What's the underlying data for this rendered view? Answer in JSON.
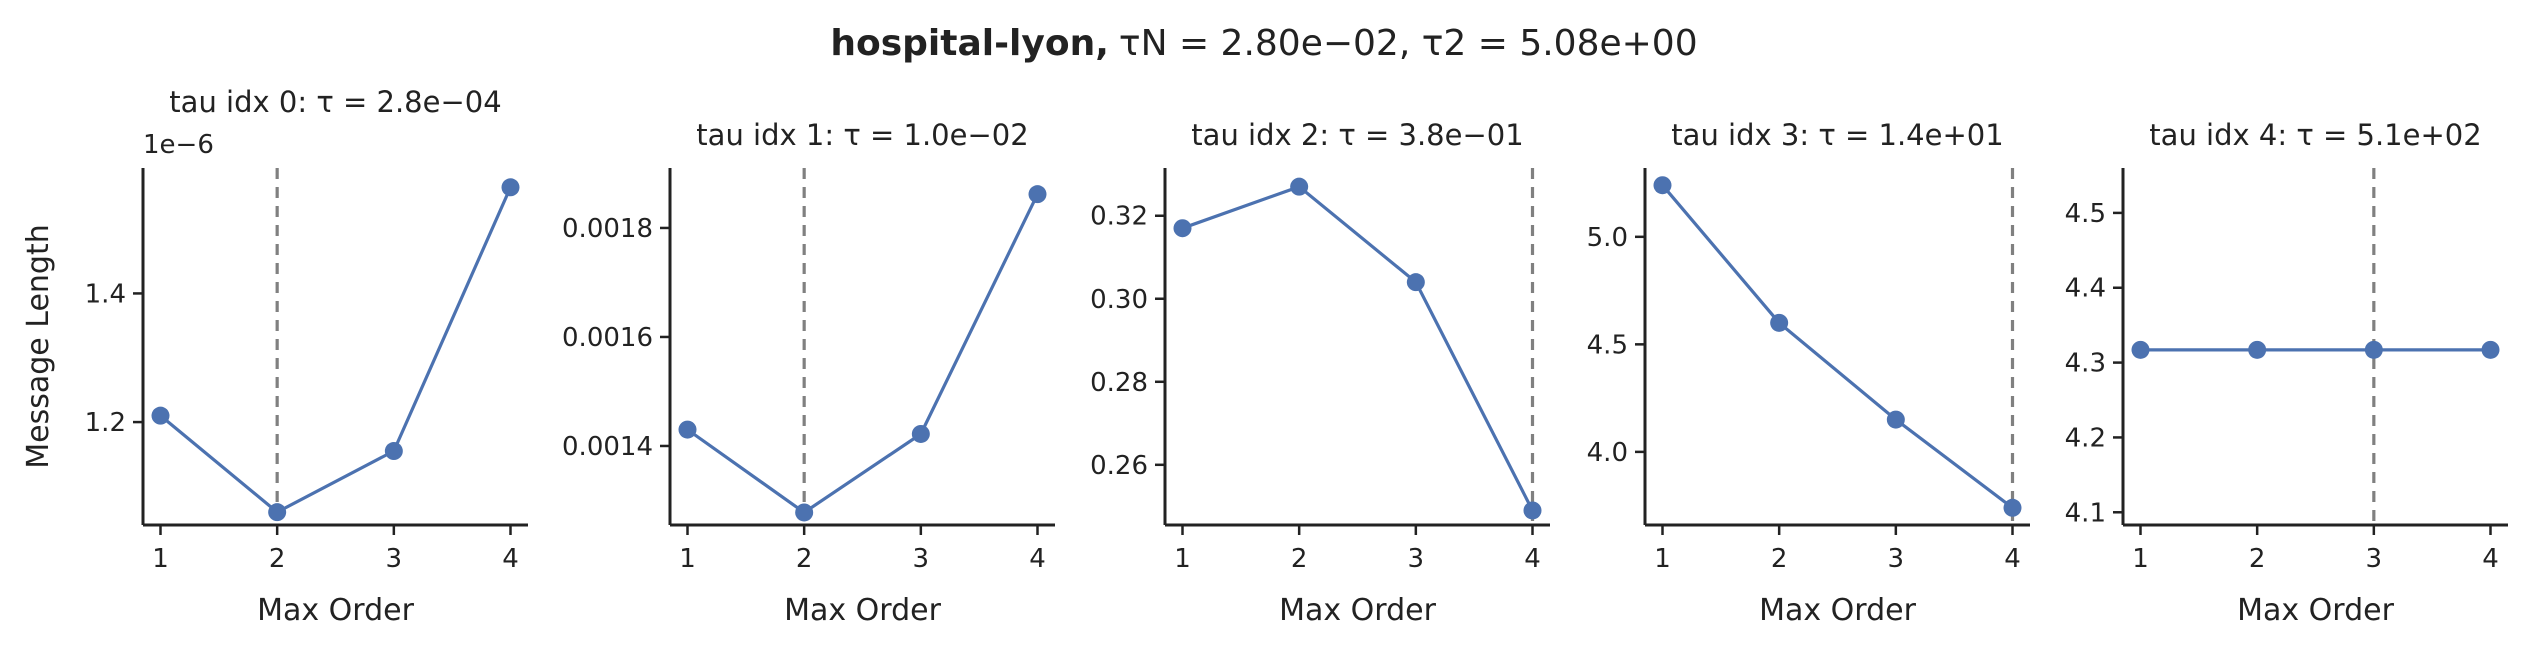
{
  "figure": {
    "suptitle_bold": "hospital-lyon,",
    "suptitle_rest": "τN = 2.80e−02, τ2 = 5.08e+00",
    "line_color": "#4c72b0",
    "vline_color": "#808080"
  },
  "chart_data": [
    {
      "type": "line",
      "title": "tau idx 0: τ = 2.8e−04",
      "xlabel": "Max Order",
      "ylabel": "Message Length",
      "offset_label": "1e−6",
      "x": [
        1,
        2,
        3,
        4
      ],
      "y": [
        1.21,
        1.06,
        1.155,
        1.565
      ],
      "ylim": [
        1.04,
        1.595
      ],
      "yticks": [
        1.2,
        1.4
      ],
      "ytick_labels": [
        "1.2",
        "1.4"
      ],
      "xticks": [
        1,
        2,
        3,
        4
      ],
      "xtick_labels": [
        "1",
        "2",
        "3",
        "4"
      ],
      "vline_x": 2
    },
    {
      "type": "line",
      "title": "tau idx 1: τ = 1.0e−02",
      "xlabel": "Max Order",
      "ylabel": "",
      "x": [
        1,
        2,
        3,
        4
      ],
      "y": [
        0.00143,
        0.001278,
        0.001422,
        0.001862
      ],
      "ylim": [
        0.001255,
        0.00191
      ],
      "yticks": [
        0.0014,
        0.0016,
        0.0018
      ],
      "ytick_labels": [
        "0.0014",
        "0.0016",
        "0.0018"
      ],
      "xticks": [
        1,
        2,
        3,
        4
      ],
      "xtick_labels": [
        "1",
        "2",
        "3",
        "4"
      ],
      "vline_x": 2
    },
    {
      "type": "line",
      "title": "tau idx 2: τ = 3.8e−01",
      "xlabel": "Max Order",
      "ylabel": "",
      "x": [
        1,
        2,
        3,
        4
      ],
      "y": [
        0.317,
        0.327,
        0.304,
        0.249
      ],
      "ylim": [
        0.2455,
        0.3315
      ],
      "yticks": [
        0.26,
        0.28,
        0.3,
        0.32
      ],
      "ytick_labels": [
        "0.26",
        "0.28",
        "0.30",
        "0.32"
      ],
      "xticks": [
        1,
        2,
        3,
        4
      ],
      "xtick_labels": [
        "1",
        "2",
        "3",
        "4"
      ],
      "vline_x": 4
    },
    {
      "type": "line",
      "title": "tau idx 3: τ = 1.4e+01",
      "xlabel": "Max Order",
      "ylabel": "",
      "x": [
        1,
        2,
        3,
        4
      ],
      "y": [
        5.24,
        4.6,
        4.15,
        3.74
      ],
      "ylim": [
        3.66,
        5.32
      ],
      "yticks": [
        4.0,
        4.5,
        5.0
      ],
      "ytick_labels": [
        "4.0",
        "4.5",
        "5.0"
      ],
      "xticks": [
        1,
        2,
        3,
        4
      ],
      "xtick_labels": [
        "1",
        "2",
        "3",
        "4"
      ],
      "vline_x": 4
    },
    {
      "type": "line",
      "title": "tau idx 4: τ = 5.1e+02",
      "xlabel": "Max Order",
      "ylabel": "",
      "x": [
        1,
        2,
        3,
        4
      ],
      "y": [
        4.317,
        4.317,
        4.317,
        4.317
      ],
      "ylim": [
        4.083,
        4.56
      ],
      "yticks": [
        4.1,
        4.2,
        4.3,
        4.4,
        4.5
      ],
      "ytick_labels": [
        "4.1",
        "4.2",
        "4.3",
        "4.4",
        "4.5"
      ],
      "xticks": [
        1,
        2,
        3,
        4
      ],
      "xtick_labels": [
        "1",
        "2",
        "3",
        "4"
      ],
      "vline_x": 3
    }
  ]
}
